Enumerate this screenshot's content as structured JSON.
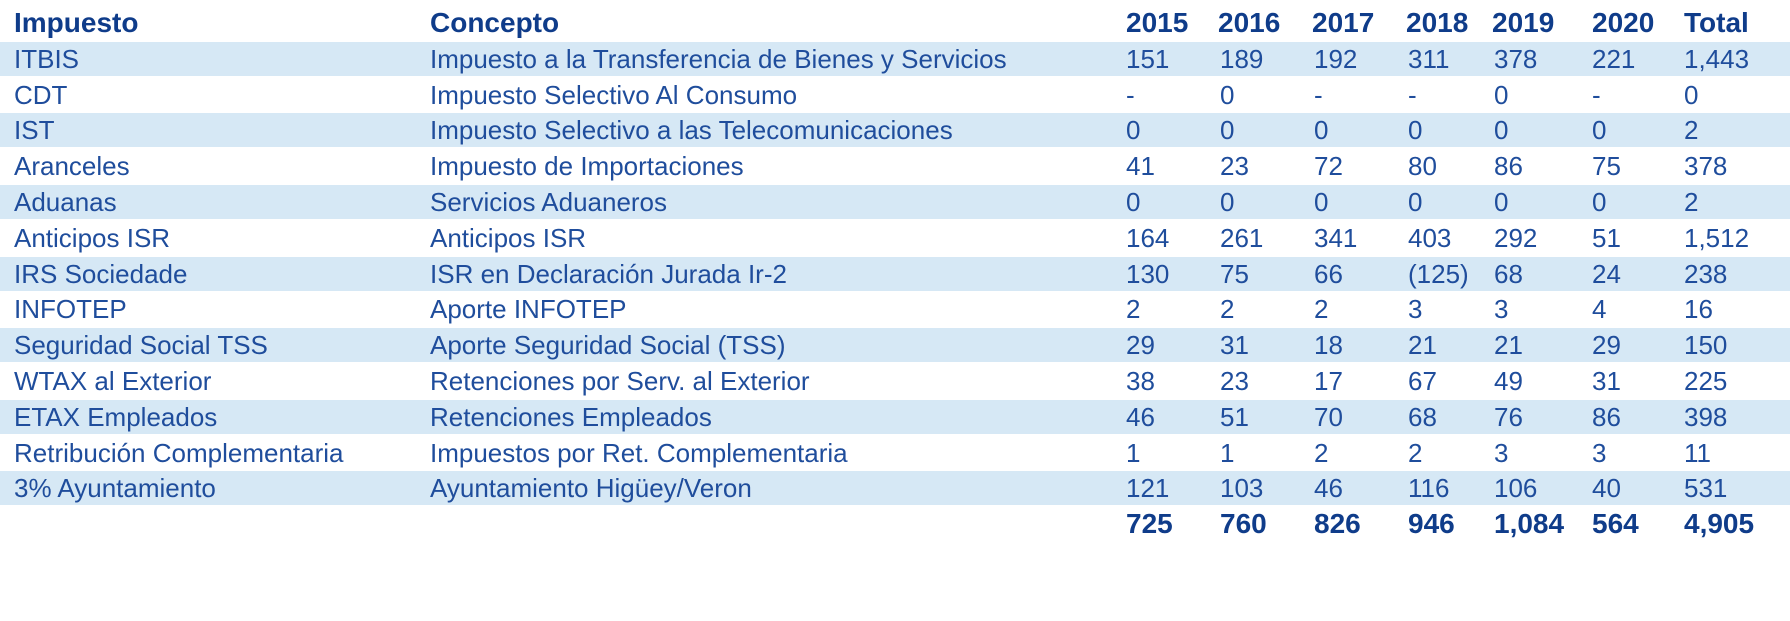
{
  "headers": [
    "Impuesto",
    "Concepto",
    "2015",
    "2016",
    "2017",
    "2018",
    "2019",
    "2020",
    "Total"
  ],
  "rows": [
    {
      "impuesto": "ITBIS",
      "concepto": "Impuesto a la Transferencia de Bienes y Servicios",
      "values": [
        "151",
        "189",
        "192",
        "311",
        "378",
        "221",
        "1,443"
      ]
    },
    {
      "impuesto": "CDT",
      "concepto": "Impuesto Selectivo Al Consumo",
      "values": [
        "-",
        "0",
        "-",
        "-",
        "0",
        "-",
        "0"
      ]
    },
    {
      "impuesto": "IST",
      "concepto": "Impuesto Selectivo a las Telecomunicaciones",
      "values": [
        "0",
        "0",
        "0",
        "0",
        "0",
        "0",
        "2"
      ]
    },
    {
      "impuesto": "Aranceles",
      "concepto": "Impuesto de Importaciones",
      "values": [
        "41",
        "23",
        "72",
        "80",
        "86",
        "75",
        "378"
      ]
    },
    {
      "impuesto": "Aduanas",
      "concepto": "Servicios Aduaneros",
      "values": [
        "0",
        "0",
        "0",
        "0",
        "0",
        "0",
        "2"
      ]
    },
    {
      "impuesto": "Anticipos ISR",
      "concepto": "Anticipos ISR",
      "values": [
        "164",
        "261",
        "341",
        "403",
        "292",
        "51",
        "1,512"
      ]
    },
    {
      "impuesto": "IRS Sociedade",
      "concepto": "ISR en Declaración Jurada Ir-2",
      "values": [
        "130",
        "75",
        "66",
        "(125)",
        "68",
        "24",
        "238"
      ]
    },
    {
      "impuesto": "INFOTEP",
      "concepto": "Aporte INFOTEP",
      "values": [
        "2",
        "2",
        "2",
        "3",
        "3",
        "4",
        "16"
      ]
    },
    {
      "impuesto": "Seguridad Social TSS",
      "concepto": "Aporte Seguridad Social (TSS)",
      "values": [
        "29",
        "31",
        "18",
        "21",
        "21",
        "29",
        "150"
      ]
    },
    {
      "impuesto": "WTAX al Exterior",
      "concepto": "Retenciones por Serv. al Exterior",
      "values": [
        "38",
        "23",
        "17",
        "67",
        "49",
        "31",
        "225"
      ]
    },
    {
      "impuesto": "ETAX Empleados",
      "concepto": "Retenciones Empleados",
      "values": [
        "46",
        "51",
        "70",
        "68",
        "76",
        "86",
        "398"
      ]
    },
    {
      "impuesto": "Retribución Complementaria",
      "concepto": "Impuestos por Ret. Complementaria",
      "values": [
        "1",
        "1",
        "2",
        "2",
        "3",
        "3",
        "11"
      ]
    },
    {
      "impuesto": "3% Ayuntamiento",
      "concepto": "Ayuntamiento Higüey/Veron",
      "values": [
        "121",
        "103",
        "46",
        "116",
        "106",
        "40",
        "531"
      ]
    }
  ],
  "totals": [
    "725",
    "760",
    "826",
    "946",
    "1,084",
    "564",
    "4,905"
  ],
  "colors": {
    "text": "#1f4d9c",
    "header_text": "#0f3c8a",
    "row_shade": "#d6e8f5"
  }
}
